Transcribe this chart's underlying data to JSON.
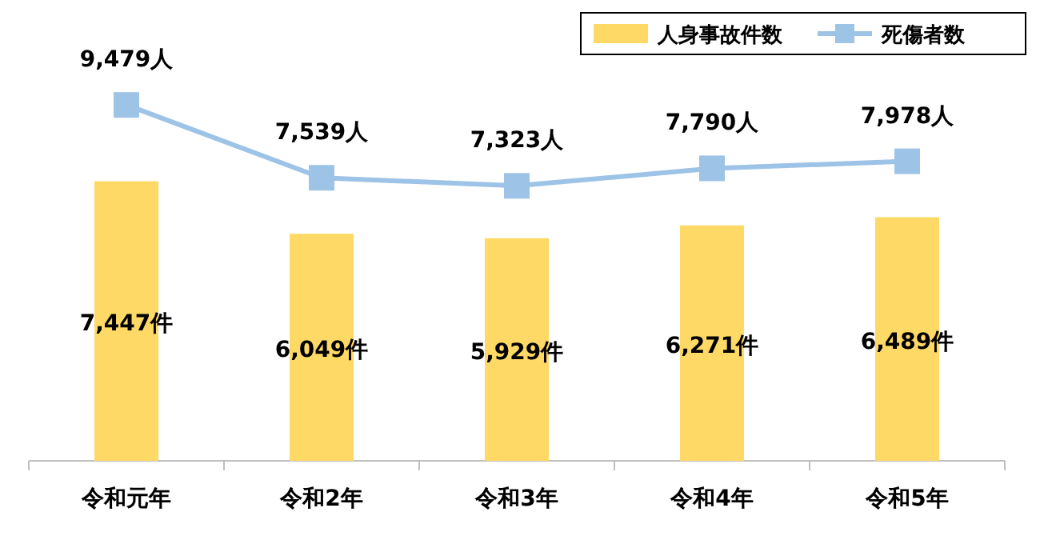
{
  "chart_data": {
    "type": "bar",
    "categories": [
      "令和元年",
      "令和2年",
      "令和3年",
      "令和4年",
      "令和5年"
    ],
    "legend": "top right",
    "series": [
      {
        "name": "人身事故件数",
        "color": "#ffd966",
        "values": [
          7447,
          6049,
          5929,
          6271,
          6489
        ],
        "value_labels": [
          "7,447件",
          "6,049件",
          "5,929件",
          "6,271件",
          "6,489件"
        ]
      },
      {
        "name": "死傷者数",
        "type": "line",
        "color": "#9dc3e6",
        "marker": "square",
        "values": [
          9479,
          7539,
          7323,
          7790,
          7978
        ],
        "value_labels": [
          "9,479人",
          "7,539人",
          "7,323人",
          "7,790人",
          "7,978人"
        ]
      }
    ]
  }
}
